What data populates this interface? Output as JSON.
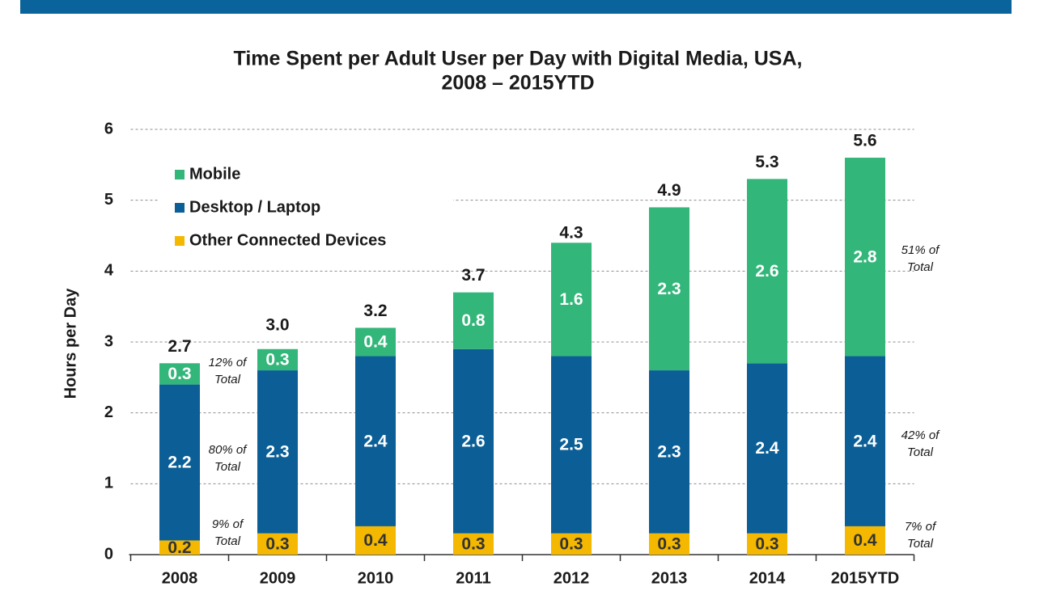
{
  "chart_data": {
    "type": "stacked_bar",
    "title_lines": [
      "Time Spent per Adult User per Day with Digital Media, USA,",
      "2008 – 2015YTD"
    ],
    "y_label": "Hours per Day",
    "categories": [
      "2008",
      "2009",
      "2010",
      "2011",
      "2012",
      "2013",
      "2014",
      "2015YTD"
    ],
    "series": [
      {
        "name": "Mobile",
        "color": "#33b67a",
        "label_color": "#ffffff",
        "values": [
          0.3,
          0.3,
          0.4,
          0.8,
          1.6,
          2.3,
          2.6,
          2.8
        ]
      },
      {
        "name": "Desktop / Laptop",
        "color": "#0b5f96",
        "label_color": "#ffffff",
        "values": [
          2.2,
          2.3,
          2.4,
          2.6,
          2.5,
          2.3,
          2.4,
          2.4
        ]
      },
      {
        "name": "Other Connected Devices",
        "color": "#f4b800",
        "label_color": "#333333",
        "values": [
          0.2,
          0.3,
          0.4,
          0.3,
          0.3,
          0.3,
          0.3,
          0.4
        ]
      }
    ],
    "totals": [
      2.7,
      3.0,
      3.2,
      3.7,
      4.3,
      4.9,
      5.3,
      5.6
    ],
    "total_labels": [
      "2.7",
      "3.0",
      "3.2",
      "3.7",
      "4.3",
      "4.9",
      "5.3",
      "5.6"
    ],
    "ylim": [
      0,
      6
    ],
    "yticks": [
      0,
      1,
      2,
      3,
      4,
      5,
      6
    ],
    "grid": true,
    "annotations": [
      {
        "lines": [
          "12% of",
          "Total"
        ]
      },
      {
        "lines": [
          "80% of",
          "Total"
        ]
      },
      {
        "lines": [
          "9% of",
          "Total"
        ]
      },
      {
        "lines": [
          "51% of",
          "Total"
        ]
      },
      {
        "lines": [
          "42% of",
          "Total"
        ]
      },
      {
        "lines": [
          "7% of",
          "Total"
        ]
      }
    ]
  }
}
